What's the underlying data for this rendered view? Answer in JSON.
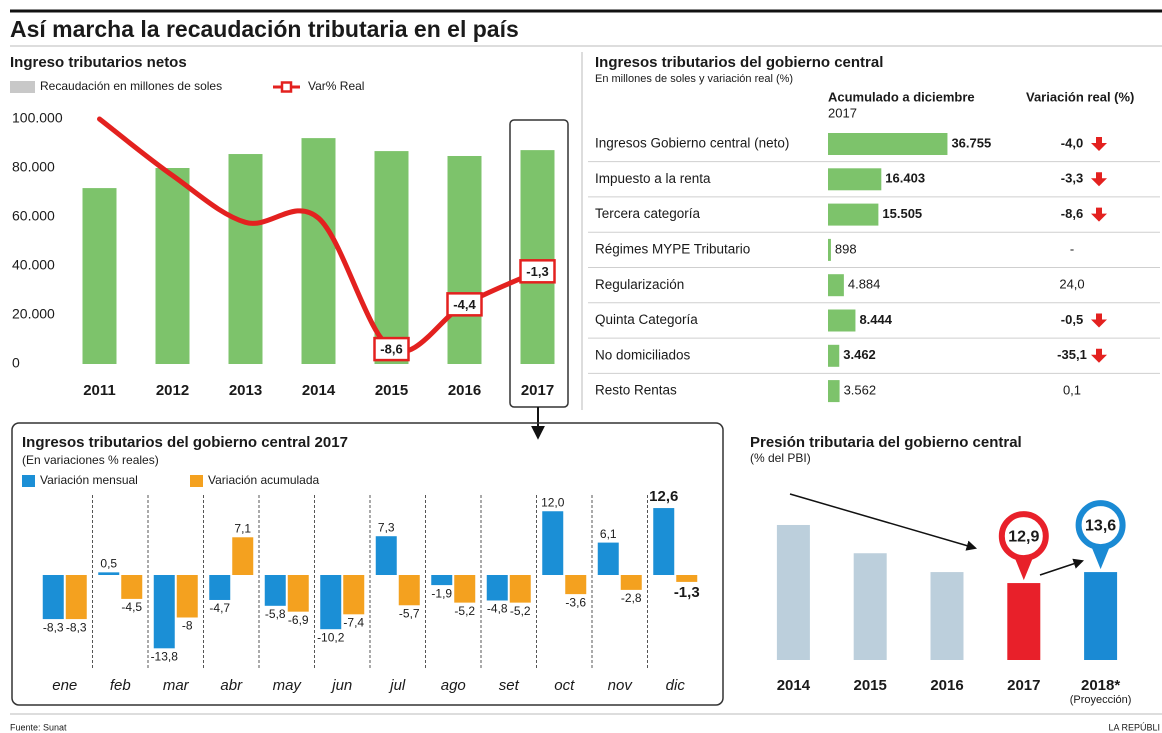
{
  "title": "Así marcha la recaudación tributaria en el país",
  "source": "Fuente: Sunat",
  "credit": "LA REPÚBLI",
  "chart_data": [
    {
      "type": "bar",
      "title": "Ingreso tributarios netos",
      "categories": [
        "2011",
        "2012",
        "2013",
        "2014",
        "2015",
        "2016",
        "2017"
      ],
      "series": [
        {
          "name": "Recaudación en millones de soles",
          "type": "bar",
          "color": "#7dc36b",
          "legend_color": "#c8c8c8",
          "values": [
            71800,
            80000,
            85700,
            92200,
            86900,
            84900,
            87300
          ]
        },
        {
          "name": "Var% Real",
          "type": "line",
          "axis": "y2",
          "color": "#e3211f",
          "values": [
            13,
            7.7,
            3.3,
            3.7,
            -8.6,
            -4.4,
            -1.3
          ],
          "value_labels": [
            null,
            null,
            null,
            null,
            "-8,6",
            "-4,4",
            "-1,3"
          ]
        }
      ],
      "ylim": [
        0,
        100000
      ],
      "yticks": [
        0,
        {
          "value": 20000,
          "label": "20.000"
        },
        {
          "value": 40000,
          "label": "40.000"
        },
        {
          "value": 60000,
          "label": "60.000"
        },
        {
          "value": 80000,
          "label": "80.000"
        },
        {
          "value": 100000,
          "label": "100.000"
        }
      ],
      "y2lim": [
        -10,
        13
      ]
    },
    {
      "type": "table",
      "title": "Ingresos tributarios del gobierno central",
      "subtitle": "En millones de soles y variación real (%)",
      "columns": [
        "Acumulado a diciembre",
        "Variación real (%)"
      ],
      "column_subtitle": "2017",
      "rows": [
        "Ingresos Gobierno central (neto)",
        "Impuesto a la renta",
        "Tercera categoría",
        "Régimes MYPE Tributario",
        "Regularización",
        "Quinta Categoría",
        "No domiciliados",
        "Resto Rentas"
      ],
      "values": [
        36755,
        16403,
        15505,
        898,
        4884,
        8444,
        3462,
        3562
      ],
      "value_labels": [
        "36.755",
        "16.403",
        "15.505",
        "898",
        "4.884",
        "8.444",
        "3.462",
        "3.562"
      ],
      "variation": [
        -4.0,
        -3.3,
        -8.6,
        null,
        24.0,
        -0.5,
        -35.1,
        0.1
      ],
      "variation_labels": [
        "-4,0",
        "-3,3",
        "-8,6",
        "-",
        "24,0",
        "-0,5",
        "-35,1",
        "0,1"
      ],
      "color": "#7dc36b",
      "xlim": [
        0,
        40000
      ]
    },
    {
      "type": "bar",
      "title": "Ingresos tributarios del gobierno central 2017",
      "subtitle": "(En variaciones % reales)",
      "categories": [
        "ene",
        "feb",
        "mar",
        "abr",
        "may",
        "jun",
        "jul",
        "ago",
        "set",
        "oct",
        "nov",
        "dic"
      ],
      "series": [
        {
          "name": "Variación mensual",
          "type": "bar",
          "color": "#1b8fd6",
          "values": [
            -8.3,
            0.5,
            -13.8,
            -4.7,
            -5.8,
            -10.2,
            7.3,
            -1.9,
            -4.8,
            12.0,
            6.1,
            12.6
          ],
          "value_labels": [
            "-8,3",
            "0,5",
            "-13,8",
            "-4,7",
            "-5,8",
            "-10,2",
            "7,3",
            "-1,9",
            "-4,8",
            "12,0",
            "6,1",
            "12,6"
          ]
        },
        {
          "name": "Variación acumulada",
          "type": "bar",
          "color": "#f4a11f",
          "values": [
            -8.3,
            -4.5,
            -8,
            7.1,
            -6.9,
            -7.4,
            -5.7,
            -5.2,
            -5.2,
            -3.6,
            -2.8,
            -1.3
          ],
          "value_labels": [
            "-8,3",
            "-4,5",
            "-8",
            "7,1",
            "-6,9",
            "-7,4",
            "-5,7",
            "-5,2",
            "-5,2",
            "-3,6",
            "-2,8",
            "-1,3"
          ]
        }
      ],
      "ylim": [
        -16,
        16
      ]
    },
    {
      "type": "bar",
      "title": "Presión tributaria del gobierno central",
      "subtitle": "(% del PBI)",
      "categories": [
        "2014",
        "2015",
        "2016",
        "2017",
        "2018*"
      ],
      "category_notes": [
        null,
        null,
        null,
        null,
        "(Proyección)"
      ],
      "series": [
        {
          "type": "bar",
          "colors": [
            "#bccfdc",
            "#bccfdc",
            "#bccfdc",
            "#e8202a",
            "#1a8ad4"
          ],
          "values": [
            16.6,
            14.8,
            13.6,
            12.9,
            13.6
          ],
          "value_labels": [
            null,
            null,
            null,
            "12,9",
            "13,6"
          ]
        }
      ],
      "ylim": [
        8,
        18
      ]
    }
  ]
}
